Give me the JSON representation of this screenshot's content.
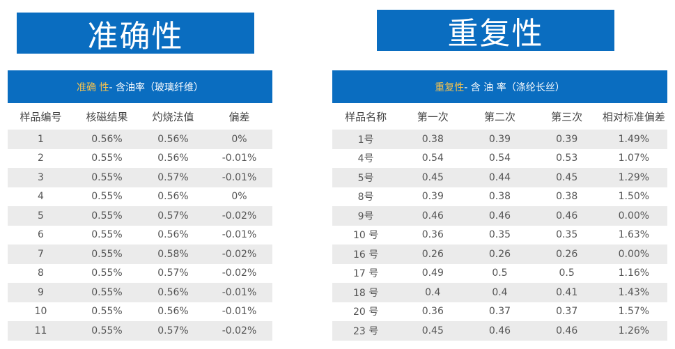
{
  "banners": {
    "accuracy": "准确性",
    "repeatability": "重复性"
  },
  "accuracy_table": {
    "title_highlight": "准确 性",
    "title_rest": "- 含油率（玻璃纤维）",
    "headers": [
      "样品编号",
      "核磁结果",
      "灼烧法值",
      "偏差"
    ],
    "rows": [
      [
        "1",
        "0.56%",
        "0.56%",
        "0%"
      ],
      [
        "2",
        "0.55%",
        "0.56%",
        "-0.01%"
      ],
      [
        "3",
        "0.55%",
        "0.57%",
        "-0.01%"
      ],
      [
        "4",
        "0.55%",
        "0.56%",
        "0%"
      ],
      [
        "5",
        "0.55%",
        "0.57%",
        "-0.02%"
      ],
      [
        "6",
        "0.55%",
        "0.56%",
        "-0.01%"
      ],
      [
        "7",
        "0.55%",
        "0.58%",
        "-0.02%"
      ],
      [
        "8",
        "0.55%",
        "0.57%",
        "-0.02%"
      ],
      [
        "9",
        "0.55%",
        "0.56%",
        "-0.01%"
      ],
      [
        "10",
        "0.55%",
        "0.56%",
        "-0.01%"
      ],
      [
        "11",
        "0.55%",
        "0.57%",
        "-0.02%"
      ]
    ]
  },
  "repeatability_table": {
    "title_highlight": "重复性",
    "title_rest": "- 含 油 率（涤纶长丝）",
    "headers": [
      "样品名称",
      "第一次",
      "第二次",
      "第三次",
      "相对标准偏差"
    ],
    "rows": [
      [
        "1号",
        "0.38",
        "0.39",
        "0.39",
        "1.49%"
      ],
      [
        "4号",
        "0.54",
        "0.54",
        "0.53",
        "1.07%"
      ],
      [
        "5号",
        "0.45",
        "0.44",
        "0.45",
        "1.29%"
      ],
      [
        "8号",
        "0.39",
        "0.38",
        "0.38",
        "1.50%"
      ],
      [
        "9号",
        "0.46",
        "0.46",
        "0.46",
        "0.00%"
      ],
      [
        "10 号",
        "0.36",
        "0.35",
        "0.35",
        "1.63%"
      ],
      [
        "16 号",
        "0.26",
        "0.26",
        "0.26",
        "0.00%"
      ],
      [
        "17 号",
        "0.49",
        "0.5",
        "0.5",
        "1.16%"
      ],
      [
        "18 号",
        "0.4",
        "0.4",
        "0.41",
        "1.43%"
      ],
      [
        "20 号",
        "0.36",
        "0.37",
        "0.37",
        "1.57%"
      ],
      [
        "23 号",
        "0.45",
        "0.46",
        "0.46",
        "1.26%"
      ]
    ]
  }
}
